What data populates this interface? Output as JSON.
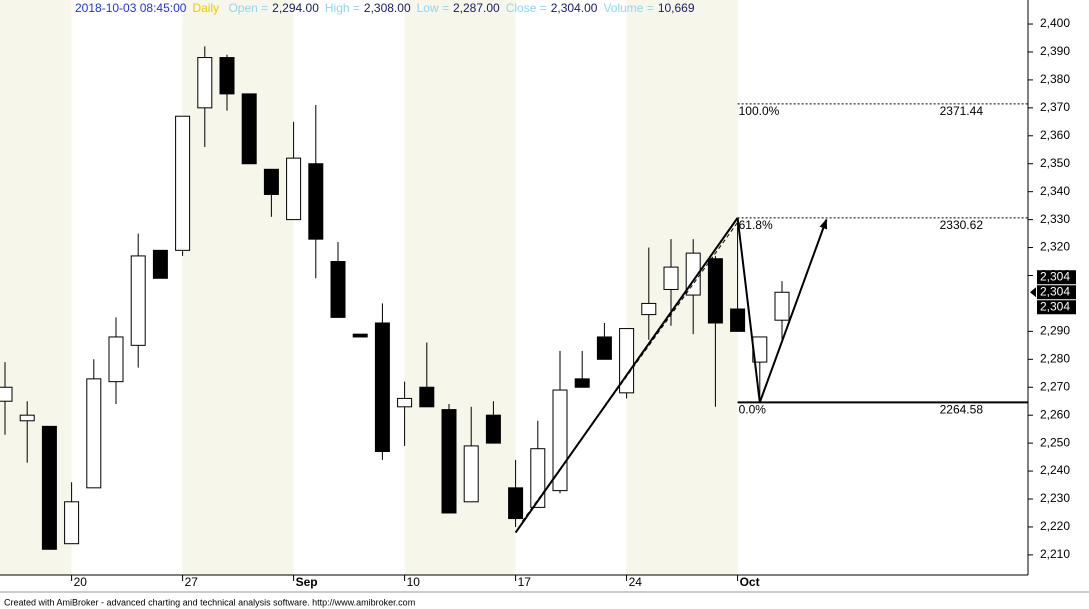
{
  "chart_data": {
    "type": "candlestick",
    "header": {
      "datetime": "2018-10-03 08:45:00",
      "interval": "Daily",
      "fields": [
        {
          "name": "Open =",
          "value": {
            "value": 2294,
            "label": "2,294.00"
          }
        },
        {
          "name": "High =",
          "value": {
            "value": 2308,
            "label": "2,308.00"
          }
        },
        {
          "name": "Low =",
          "value": {
            "value": 2287,
            "label": "2,287.00"
          }
        },
        {
          "name": "Close =",
          "value": {
            "value": 2304,
            "label": "2,304.00"
          }
        },
        {
          "name": "Volume =",
          "value": {
            "value": 10669,
            "label": "10,669"
          }
        }
      ]
    },
    "categories": [
      null,
      null,
      null,
      "20",
      null,
      null,
      null,
      null,
      "27",
      null,
      null,
      null,
      null,
      "Sep",
      null,
      null,
      null,
      null,
      "10",
      null,
      null,
      null,
      null,
      "17",
      null,
      null,
      null,
      null,
      "24",
      null,
      null,
      null,
      null,
      "Oct",
      null,
      null
    ],
    "open": [
      2265,
      2258,
      2256,
      2214,
      2234,
      2272,
      2285,
      2319,
      2319,
      2370,
      2388,
      2375,
      2348,
      2330,
      2350,
      2315,
      2289,
      2293,
      2263,
      2270,
      2262,
      2229,
      2260,
      2234,
      2227,
      2233,
      2273,
      2288,
      2268,
      2296,
      2305,
      2303,
      2316,
      2298,
      2279,
      2294
    ],
    "high": [
      2279,
      2265,
      2256,
      2236,
      2280,
      2295,
      2325,
      2319,
      2367,
      2392,
      2389,
      2375,
      2348,
      2365,
      2371,
      2322,
      2289,
      2300,
      2272,
      2286,
      2264,
      2263,
      2265,
      2244,
      2258,
      2283,
      2283,
      2293,
      2291,
      2320,
      2323,
      2323,
      2317,
      2329,
      2288,
      2308
    ],
    "low": [
      2253,
      2243,
      2212,
      2214,
      2234,
      2264,
      2277,
      2309,
      2317,
      2356,
      2369,
      2350,
      2331,
      2330,
      2309,
      2295,
      2288,
      2244,
      2249,
      2263,
      2225,
      2229,
      2250,
      2220,
      2227,
      2232,
      2270,
      2280,
      2266,
      2287,
      2292,
      2289,
      2263,
      2290,
      2265,
      2287
    ],
    "close": [
      2270,
      2260,
      2212,
      2229,
      2273,
      2288,
      2317,
      2309,
      2367,
      2388,
      2375,
      2350,
      2339,
      2352,
      2323,
      2295,
      2288,
      2247,
      2266,
      2263,
      2225,
      2249,
      2250,
      2223,
      2248,
      2269,
      2270,
      2280,
      2291,
      2300,
      2313,
      2318,
      2293,
      2290,
      2288,
      2304
    ],
    "ylim": [
      2202.8,
      2408.6
    ],
    "yticks": [
      {
        "value": 2210,
        "label": "2,210"
      },
      {
        "value": 2220,
        "label": "2,220"
      },
      {
        "value": 2230,
        "label": "2,230"
      },
      {
        "value": 2240,
        "label": "2,240"
      },
      {
        "value": 2250,
        "label": "2,250"
      },
      {
        "value": 2260,
        "label": "2,260"
      },
      {
        "value": 2270,
        "label": "2,270"
      },
      {
        "value": 2280,
        "label": "2,280"
      },
      {
        "value": 2290,
        "label": "2,290"
      },
      {
        "value": 2310,
        "label": "2,310"
      },
      {
        "value": 2320,
        "label": "2,320"
      },
      {
        "value": 2330,
        "label": "2,330"
      },
      {
        "value": 2340,
        "label": "2,340"
      },
      {
        "value": 2350,
        "label": "2,350"
      },
      {
        "value": 2360,
        "label": "2,360"
      },
      {
        "value": 2370,
        "label": "2,370"
      },
      {
        "value": 2380,
        "label": "2,380"
      },
      {
        "value": 2390,
        "label": "2,390"
      },
      {
        "value": 2400,
        "label": "2,400"
      }
    ],
    "price_tags": [
      {
        "value": 2304,
        "label": "2,304"
      },
      {
        "value": 2304,
        "label": "2,304"
      },
      {
        "value": 2304,
        "label": "2,304"
      }
    ],
    "fib_start_bar": 33,
    "fib_levels": [
      {
        "label": "100.0%",
        "value": 2371.44,
        "style": "dotted"
      },
      {
        "label": "61.8%",
        "value": 2330.62,
        "style": "dotted"
      },
      {
        "label": "0.0%",
        "value": 2264.58,
        "style": "solid"
      }
    ],
    "trendlines": [
      {
        "style": "solid",
        "arrow": false,
        "bars": [
          23,
          33
        ],
        "prices": [
          2218,
          2330.62
        ]
      },
      {
        "style": "dashed",
        "arrow": false,
        "bars": [
          23.3,
          33
        ],
        "prices": [
          2222,
          2329
        ]
      },
      {
        "style": "solid",
        "arrow": true,
        "bars": [
          33,
          34,
          37
        ],
        "prices": [
          2330.62,
          2264.58,
          2330
        ]
      }
    ],
    "footer": "Created with AmiBroker - advanced charting and technical analysis software. http://www.amibroker.com"
  }
}
